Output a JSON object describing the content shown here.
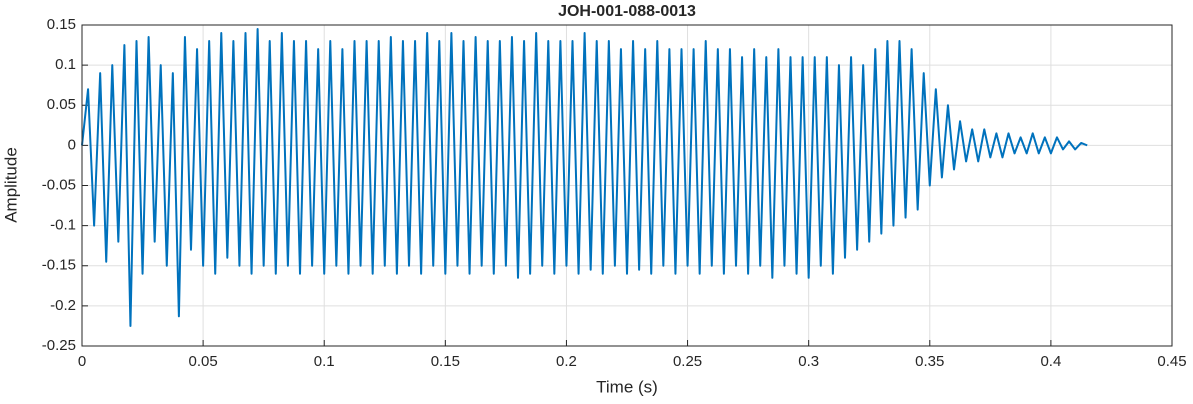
{
  "chart_data": {
    "type": "line",
    "title": "JOH-001-088-0013",
    "xlabel": "Time (s)",
    "ylabel": "Amplitude",
    "xlim": [
      0,
      0.45
    ],
    "ylim": [
      -0.25,
      0.15
    ],
    "xticks": [
      0,
      0.05,
      0.1,
      0.15,
      0.2,
      0.25,
      0.3,
      0.35,
      0.4,
      0.45
    ],
    "yticks": [
      -0.25,
      -0.2,
      -0.15,
      -0.1,
      -0.05,
      0,
      0.05,
      0.1,
      0.15
    ],
    "grid": true,
    "x": [
      0,
      0.0025,
      0.005,
      0.0075,
      0.01,
      0.0125,
      0.015,
      0.0175,
      0.02,
      0.0225,
      0.025,
      0.0275,
      0.03,
      0.0325,
      0.035,
      0.0375,
      0.04,
      0.0425,
      0.045,
      0.0475,
      0.05,
      0.0525,
      0.055,
      0.0575,
      0.06,
      0.0625,
      0.065,
      0.0675,
      0.07,
      0.0725,
      0.075,
      0.0775,
      0.08,
      0.0825,
      0.085,
      0.0875,
      0.09,
      0.0925,
      0.095,
      0.0975,
      0.1,
      0.1025,
      0.105,
      0.1075,
      0.11,
      0.1125,
      0.115,
      0.1175,
      0.12,
      0.1225,
      0.125,
      0.1275,
      0.13,
      0.1325,
      0.135,
      0.1375,
      0.14,
      0.1425,
      0.145,
      0.1475,
      0.15,
      0.1525,
      0.155,
      0.1575,
      0.16,
      0.1625,
      0.165,
      0.1675,
      0.17,
      0.1725,
      0.175,
      0.1775,
      0.18,
      0.1825,
      0.185,
      0.1875,
      0.19,
      0.1925,
      0.195,
      0.1975,
      0.2,
      0.2025,
      0.205,
      0.2075,
      0.21,
      0.2125,
      0.215,
      0.2175,
      0.22,
      0.2225,
      0.225,
      0.2275,
      0.23,
      0.2325,
      0.235,
      0.2375,
      0.24,
      0.2425,
      0.245,
      0.2475,
      0.25,
      0.2525,
      0.255,
      0.2575,
      0.26,
      0.2625,
      0.265,
      0.2675,
      0.27,
      0.2725,
      0.275,
      0.2775,
      0.28,
      0.2825,
      0.285,
      0.2875,
      0.29,
      0.2925,
      0.295,
      0.2975,
      0.3,
      0.3025,
      0.305,
      0.3075,
      0.31,
      0.3125,
      0.315,
      0.3175,
      0.32,
      0.3225,
      0.325,
      0.3275,
      0.33,
      0.3325,
      0.335,
      0.3375,
      0.34,
      0.3425,
      0.345,
      0.3475,
      0.35,
      0.3525,
      0.355,
      0.3575,
      0.36,
      0.3625,
      0.365,
      0.3675,
      0.37,
      0.3725,
      0.375,
      0.3775,
      0.38,
      0.3825,
      0.385,
      0.3875,
      0.39,
      0.3925,
      0.395,
      0.3975,
      0.4,
      0.4025,
      0.405,
      0.4075,
      0.41,
      0.4125,
      0.415
    ],
    "series": [
      {
        "color": "#0072BD",
        "values": [
          0.0,
          0.07,
          -0.1,
          0.09,
          -0.145,
          0.1,
          -0.12,
          0.125,
          -0.225,
          0.13,
          -0.16,
          0.135,
          -0.12,
          0.1,
          -0.15,
          0.09,
          -0.213,
          0.135,
          -0.13,
          0.12,
          -0.15,
          0.13,
          -0.16,
          0.14,
          -0.14,
          0.13,
          -0.15,
          0.14,
          -0.16,
          0.145,
          -0.15,
          0.13,
          -0.16,
          0.14,
          -0.15,
          0.13,
          -0.16,
          0.13,
          -0.15,
          0.12,
          -0.16,
          0.13,
          -0.15,
          0.12,
          -0.16,
          0.13,
          -0.15,
          0.13,
          -0.16,
          0.13,
          -0.15,
          0.135,
          -0.16,
          0.13,
          -0.15,
          0.13,
          -0.16,
          0.14,
          -0.15,
          0.13,
          -0.16,
          0.14,
          -0.15,
          0.13,
          -0.16,
          0.135,
          -0.15,
          0.13,
          -0.16,
          0.13,
          -0.15,
          0.135,
          -0.165,
          0.13,
          -0.16,
          0.14,
          -0.15,
          0.13,
          -0.16,
          0.13,
          -0.15,
          0.13,
          -0.16,
          0.14,
          -0.155,
          0.13,
          -0.16,
          0.13,
          -0.15,
          0.12,
          -0.16,
          0.13,
          -0.155,
          0.12,
          -0.16,
          0.13,
          -0.15,
          0.12,
          -0.16,
          0.12,
          -0.15,
          0.12,
          -0.16,
          0.13,
          -0.15,
          0.12,
          -0.16,
          0.12,
          -0.15,
          0.11,
          -0.16,
          0.12,
          -0.15,
          0.11,
          -0.165,
          0.12,
          -0.15,
          0.11,
          -0.16,
          0.11,
          -0.165,
          0.11,
          -0.15,
          0.11,
          -0.16,
          0.1,
          -0.14,
          0.11,
          -0.13,
          0.1,
          -0.12,
          0.12,
          -0.11,
          0.13,
          -0.1,
          0.13,
          -0.09,
          0.12,
          -0.08,
          0.09,
          -0.05,
          0.07,
          -0.04,
          0.05,
          -0.03,
          0.03,
          -0.02,
          0.02,
          -0.02,
          0.02,
          -0.015,
          0.015,
          -0.015,
          0.015,
          -0.01,
          0.01,
          -0.01,
          0.015,
          -0.01,
          0.01,
          -0.01,
          0.01,
          -0.005,
          0.005,
          -0.005,
          0.003,
          0.0
        ]
      }
    ]
  }
}
